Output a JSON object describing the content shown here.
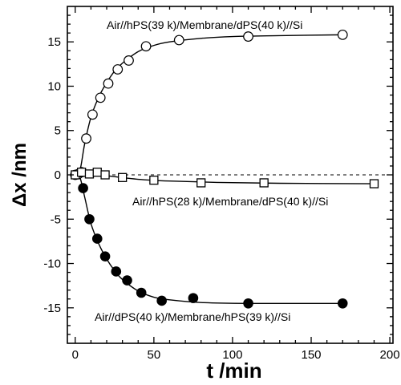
{
  "chart_data": {
    "type": "scatter",
    "xlabel": "t /min",
    "ylabel": "Δx /nm",
    "xlim": [
      -5,
      202
    ],
    "ylim": [
      -19,
      19
    ],
    "x_ticks": [
      0,
      50,
      100,
      150,
      200
    ],
    "y_ticks": [
      15,
      10,
      5,
      0,
      -5,
      -10,
      -15
    ],
    "grid": false,
    "reference_line": {
      "y": 0,
      "style": "dashed"
    },
    "series": [
      {
        "name": "Air//hPS(39 k)/Membrane/dPS(40 k)//Si",
        "marker": "open-circle",
        "points": [
          {
            "x": 0,
            "y": 0
          },
          {
            "x": 2,
            "y": 0.1
          },
          {
            "x": 4,
            "y": 0.3
          },
          {
            "x": 7,
            "y": 4.1
          },
          {
            "x": 11,
            "y": 6.8
          },
          {
            "x": 16,
            "y": 8.7
          },
          {
            "x": 21,
            "y": 10.3
          },
          {
            "x": 27,
            "y": 11.9
          },
          {
            "x": 34,
            "y": 12.9
          },
          {
            "x": 45,
            "y": 14.5
          },
          {
            "x": 66,
            "y": 15.2
          },
          {
            "x": 110,
            "y": 15.6
          },
          {
            "x": 170,
            "y": 15.8
          }
        ],
        "curve": [
          {
            "x": 0,
            "y": 0
          },
          {
            "x": 3,
            "y": 0.5
          },
          {
            "x": 6,
            "y": 3.5
          },
          {
            "x": 10,
            "y": 6.5
          },
          {
            "x": 15,
            "y": 8.8
          },
          {
            "x": 20,
            "y": 10.4
          },
          {
            "x": 25,
            "y": 11.7
          },
          {
            "x": 30,
            "y": 12.6
          },
          {
            "x": 40,
            "y": 13.9
          },
          {
            "x": 50,
            "y": 14.6
          },
          {
            "x": 60,
            "y": 15.0
          },
          {
            "x": 80,
            "y": 15.4
          },
          {
            "x": 100,
            "y": 15.6
          },
          {
            "x": 130,
            "y": 15.7
          },
          {
            "x": 170,
            "y": 15.8
          }
        ]
      },
      {
        "name": "Air//hPS(28 k)/Membrane/dPS(40 k)//Si",
        "marker": "open-square",
        "points": [
          {
            "x": 0,
            "y": 0
          },
          {
            "x": 4,
            "y": 0.3
          },
          {
            "x": 9,
            "y": 0.1
          },
          {
            "x": 14,
            "y": 0.3
          },
          {
            "x": 19,
            "y": 0
          },
          {
            "x": 30,
            "y": -0.3
          },
          {
            "x": 50,
            "y": -0.6
          },
          {
            "x": 80,
            "y": -0.9
          },
          {
            "x": 120,
            "y": -0.9
          },
          {
            "x": 190,
            "y": -1.0
          }
        ],
        "curve": [
          {
            "x": 0,
            "y": 0.1
          },
          {
            "x": 10,
            "y": 0.1
          },
          {
            "x": 20,
            "y": -0.1
          },
          {
            "x": 40,
            "y": -0.5
          },
          {
            "x": 60,
            "y": -0.7
          },
          {
            "x": 90,
            "y": -0.85
          },
          {
            "x": 130,
            "y": -0.95
          },
          {
            "x": 190,
            "y": -1.0
          }
        ]
      },
      {
        "name": "Air//dPS(40 k)/Membrane/hPS(39 k)//Si",
        "marker": "filled-circle",
        "points": [
          {
            "x": 5,
            "y": -1.5
          },
          {
            "x": 9,
            "y": -5.0
          },
          {
            "x": 14,
            "y": -7.2
          },
          {
            "x": 19,
            "y": -9.2
          },
          {
            "x": 26,
            "y": -10.9
          },
          {
            "x": 33,
            "y": -11.9
          },
          {
            "x": 42,
            "y": -13.3
          },
          {
            "x": 55,
            "y": -14.2
          },
          {
            "x": 75,
            "y": -13.9
          },
          {
            "x": 110,
            "y": -14.5
          },
          {
            "x": 170,
            "y": -14.5
          }
        ],
        "curve": [
          {
            "x": 0,
            "y": 0
          },
          {
            "x": 3,
            "y": -0.3
          },
          {
            "x": 6,
            "y": -2.5
          },
          {
            "x": 10,
            "y": -5.5
          },
          {
            "x": 15,
            "y": -7.8
          },
          {
            "x": 20,
            "y": -9.5
          },
          {
            "x": 25,
            "y": -10.8
          },
          {
            "x": 30,
            "y": -11.8
          },
          {
            "x": 40,
            "y": -13.1
          },
          {
            "x": 50,
            "y": -13.8
          },
          {
            "x": 60,
            "y": -14.1
          },
          {
            "x": 80,
            "y": -14.4
          },
          {
            "x": 110,
            "y": -14.5
          },
          {
            "x": 170,
            "y": -14.5
          }
        ]
      }
    ]
  }
}
